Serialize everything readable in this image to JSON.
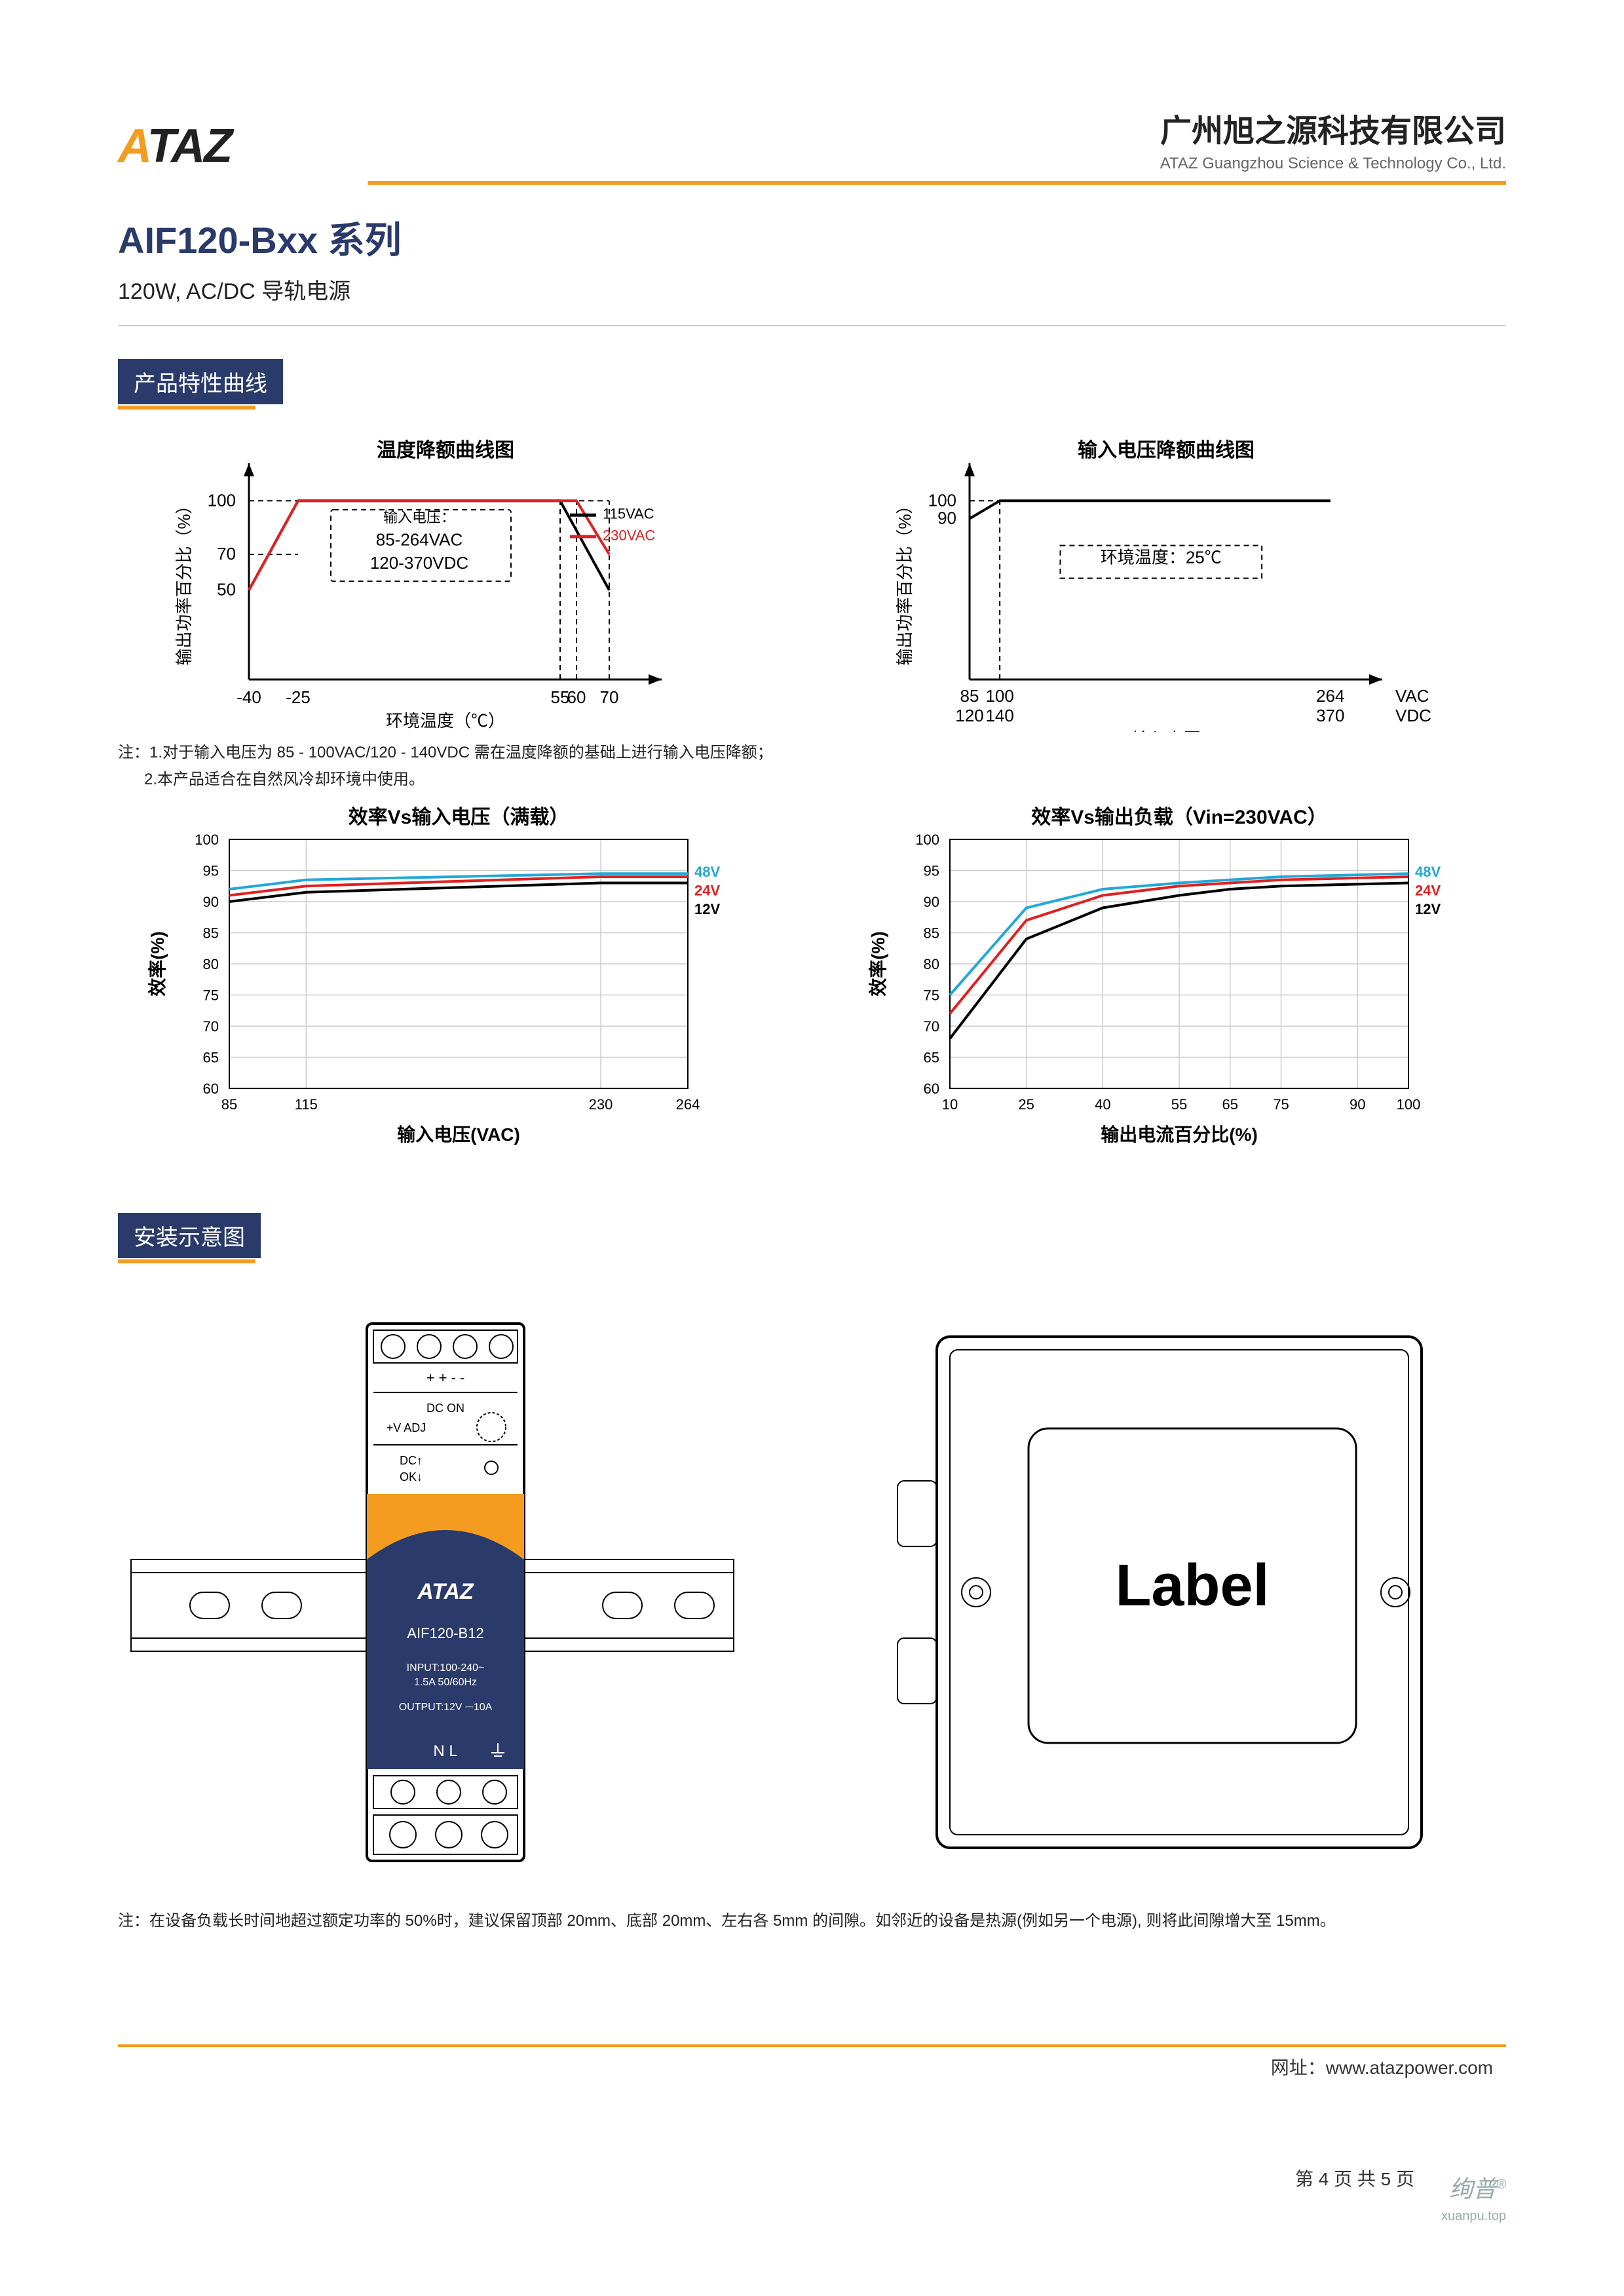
{
  "header": {
    "logo_text_a": "A",
    "logo_text_rest": "TAZ",
    "company_cn": "广州旭之源科技有限公司",
    "company_en": "ATAZ Guangzhou Science & Technology Co., Ltd."
  },
  "title": {
    "product": "AIF120-Bxx 系列",
    "subtitle": "120W, AC/DC 导轨电源"
  },
  "section1": {
    "label": "产品特性曲线"
  },
  "temp_derate": {
    "type": "line",
    "title": "温度降额曲线图",
    "xlabel": "环境温度（℃）",
    "ylabel": "输出功率百分比（%）",
    "x_ticks": [
      -40,
      -25,
      55,
      60,
      70
    ],
    "y_ticks": [
      50,
      70,
      100
    ],
    "xlim": [
      -40,
      80
    ],
    "ylim": [
      0,
      110
    ],
    "note_title": "输入电压：",
    "note_l1": "85-264VAC",
    "note_l2": "120-370VDC",
    "legend": {
      "l115": "115VAC",
      "l230": "230VAC"
    },
    "colors": {
      "l115": "#000000",
      "l230": "#e02020",
      "axis": "#000000",
      "dash": "#000000"
    },
    "series_115": [
      [
        -40,
        50
      ],
      [
        -25,
        100
      ],
      [
        55,
        100
      ],
      [
        70,
        50
      ]
    ],
    "series_230": [
      [
        -40,
        50
      ],
      [
        -25,
        100
      ],
      [
        60,
        100
      ],
      [
        70,
        70
      ]
    ]
  },
  "vin_derate": {
    "type": "line",
    "title": "输入电压降额曲线图",
    "xlabel": "输入电压",
    "ylabel": "输出功率百分比（%）",
    "x_ticks_ac": [
      85,
      100,
      264
    ],
    "x_ticks_dc": [
      120,
      140,
      370
    ],
    "x_unit_ac": "VAC",
    "x_unit_dc": "VDC",
    "y_ticks": [
      90,
      100
    ],
    "xlim": [
      85,
      280
    ],
    "ylim": [
      0,
      110
    ],
    "annotation": "环境温度：25℃",
    "colors": {
      "line": "#000000",
      "axis": "#000000"
    },
    "series": [
      [
        85,
        90
      ],
      [
        100,
        100
      ],
      [
        264,
        100
      ]
    ]
  },
  "eff_vin": {
    "type": "line",
    "title": "效率Vs输入电压（满载）",
    "xlabel": "输入电压(VAC)",
    "ylabel": "效率(%)",
    "x_ticks": [
      85,
      115,
      230,
      264
    ],
    "y_ticks": [
      60,
      65,
      70,
      75,
      80,
      85,
      90,
      95,
      100
    ],
    "xlim": [
      85,
      264
    ],
    "ylim": [
      60,
      100
    ],
    "legend": {
      "v48": "48V",
      "v24": "24V",
      "v12": "12V"
    },
    "colors": {
      "v48": "#22a8d8",
      "v24": "#e02020",
      "v12": "#000000",
      "grid": "#cccccc",
      "bg": "#ffffff"
    },
    "series_48": [
      [
        85,
        92
      ],
      [
        115,
        93.5
      ],
      [
        230,
        94.5
      ],
      [
        264,
        94.5
      ]
    ],
    "series_24": [
      [
        85,
        91
      ],
      [
        115,
        92.5
      ],
      [
        230,
        94
      ],
      [
        264,
        94
      ]
    ],
    "series_12": [
      [
        85,
        90
      ],
      [
        115,
        91.5
      ],
      [
        230,
        93
      ],
      [
        264,
        93
      ]
    ]
  },
  "eff_load": {
    "type": "line",
    "title": "效率Vs输出负载（Vin=230VAC）",
    "xlabel": "输出电流百分比(%)",
    "ylabel": "效率(%)",
    "x_ticks": [
      10,
      25,
      40,
      55,
      65,
      75,
      90,
      100
    ],
    "y_ticks": [
      60,
      65,
      70,
      75,
      80,
      85,
      90,
      95,
      100
    ],
    "xlim": [
      10,
      100
    ],
    "ylim": [
      60,
      100
    ],
    "legend": {
      "v48": "48V",
      "v24": "24V",
      "v12": "12V"
    },
    "colors": {
      "v48": "#22a8d8",
      "v24": "#e02020",
      "v12": "#000000",
      "grid": "#cccccc"
    },
    "series_48": [
      [
        10,
        75
      ],
      [
        25,
        89
      ],
      [
        40,
        92
      ],
      [
        55,
        93
      ],
      [
        65,
        93.5
      ],
      [
        75,
        94
      ],
      [
        90,
        94.3
      ],
      [
        100,
        94.5
      ]
    ],
    "series_24": [
      [
        10,
        72
      ],
      [
        25,
        87
      ],
      [
        40,
        91
      ],
      [
        55,
        92.5
      ],
      [
        65,
        93
      ],
      [
        75,
        93.5
      ],
      [
        90,
        93.8
      ],
      [
        100,
        94
      ]
    ],
    "series_12": [
      [
        10,
        68
      ],
      [
        25,
        84
      ],
      [
        40,
        89
      ],
      [
        55,
        91
      ],
      [
        65,
        92
      ],
      [
        75,
        92.5
      ],
      [
        90,
        92.8
      ],
      [
        100,
        93
      ]
    ]
  },
  "notes": {
    "prefix": "注：",
    "n1": "1.对于输入电压为 85 - 100VAC/120 - 140VDC 需在温度降额的基础上进行输入电压降额；",
    "n2": "2.本产品适合在自然风冷却环境中使用。"
  },
  "section2": {
    "label": "安装示意图"
  },
  "device": {
    "brand": "ATAZ",
    "model": "AIF120-B12",
    "input": "INPUT:100-240~",
    "input2": "1.5A  50/60Hz",
    "output": "OUTPUT:12V ⎓10A",
    "nl": "N  L",
    "dc_on": "DC ON",
    "vadj": "+V ADJ",
    "dc": "DC",
    "ok": "OK",
    "terminals_top": "+  +  -  -",
    "side_label": "Label"
  },
  "install_note": {
    "prefix": "注：",
    "text": "在设备负载长时间地超过额定功率的 50%时，建议保留顶部 20mm、底部 20mm、左右各 5mm 的间隙。如邻近的设备是热源(例如另一个电源), 则将此间隙增大至 15mm。"
  },
  "footer": {
    "url_label": "网址：",
    "url": "www.atazpower.com",
    "page": "第 4 页 共 5 页",
    "watermark": "绚普",
    "watermark_sub": "xuanpu.top"
  }
}
